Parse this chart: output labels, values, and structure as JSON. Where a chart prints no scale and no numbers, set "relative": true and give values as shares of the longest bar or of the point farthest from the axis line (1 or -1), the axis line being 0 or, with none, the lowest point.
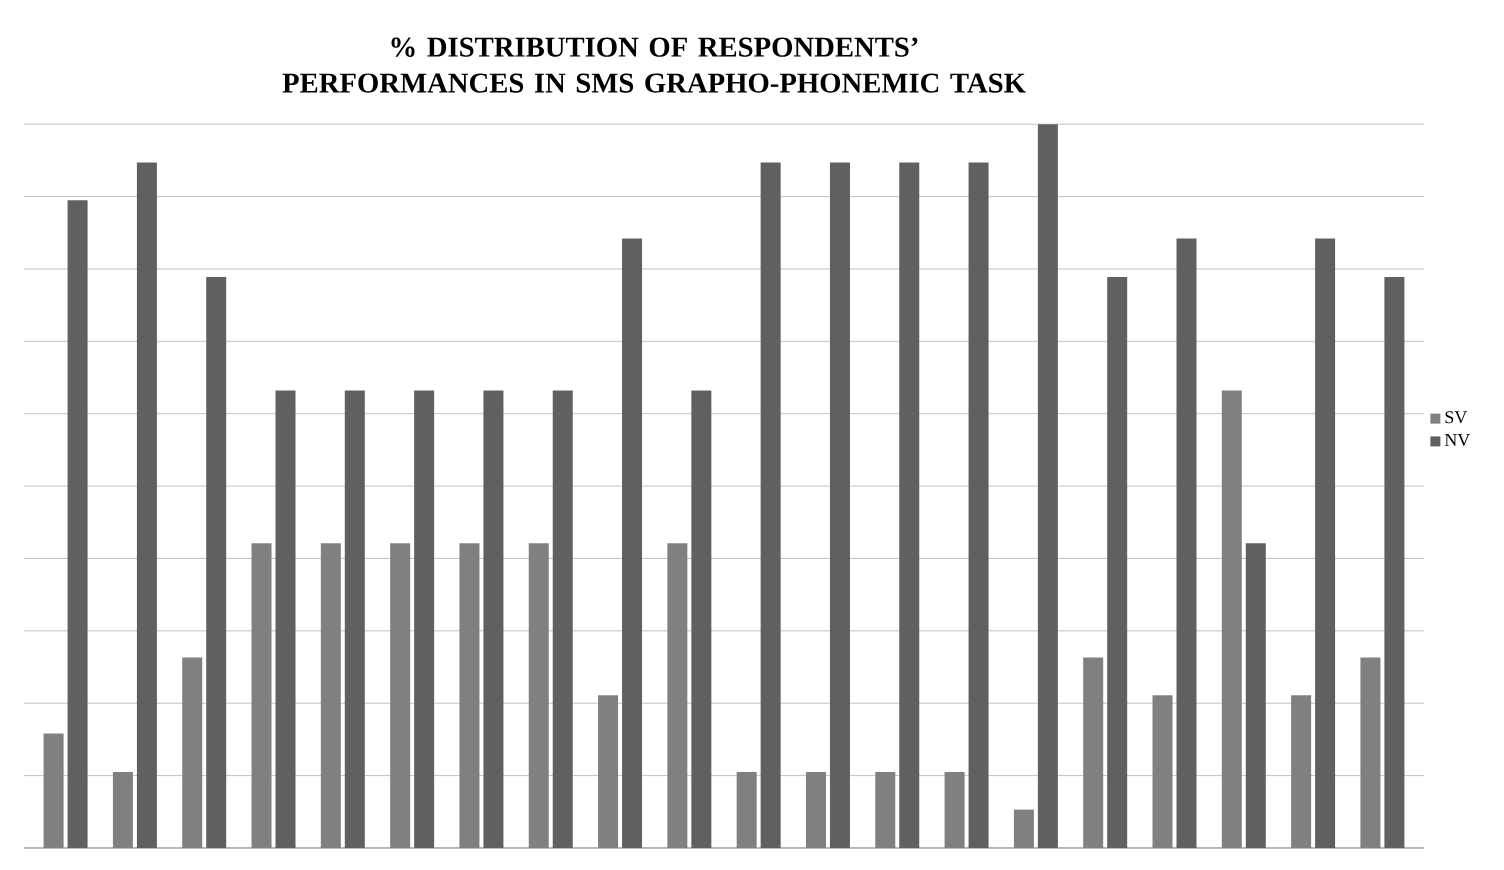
{
  "chart_data": {
    "type": "bar",
    "title": "% DISTRIBUTION OF RESPONDENTS’ PERFORMANCES IN SMS GRAPHO-PHONEMIC TASK",
    "relative": true,
    "grid": "y",
    "legend": "right",
    "categories": [
      null,
      null,
      null,
      null,
      null,
      null,
      null,
      null,
      null,
      null,
      null,
      null,
      null,
      null,
      null,
      null,
      null,
      null,
      null,
      null
    ],
    "series": [
      {
        "name": "SV",
        "color": "#808080",
        "values": [
          0.158,
          0.105,
          0.263,
          0.421,
          0.421,
          0.421,
          0.421,
          0.421,
          0.211,
          0.421,
          0.105,
          0.105,
          0.105,
          0.105,
          0.053,
          0.263,
          0.211,
          0.632,
          0.211,
          0.263
        ]
      },
      {
        "name": "NV",
        "color": "#606060",
        "values": [
          0.895,
          0.947,
          0.789,
          0.632,
          0.632,
          0.632,
          0.632,
          0.632,
          0.842,
          0.632,
          0.947,
          0.947,
          0.947,
          0.947,
          1,
          0.789,
          0.842,
          0.421,
          0.842,
          0.789
        ]
      }
    ]
  }
}
